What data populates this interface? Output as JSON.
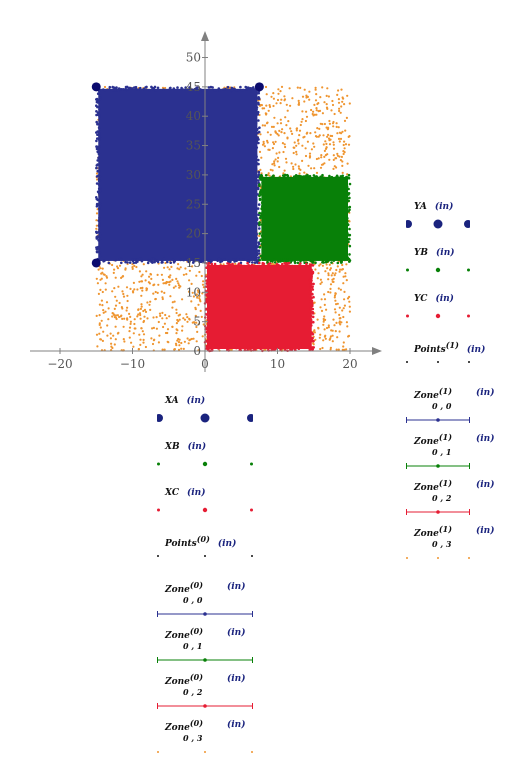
{
  "chart_data": {
    "type": "scatter",
    "x_ticks": [
      "−20",
      "−10",
      "0",
      "10",
      "20"
    ],
    "y_ticks": [
      "0",
      "5",
      "10",
      "15",
      "20",
      "25",
      "30",
      "35",
      "40",
      "45",
      "50"
    ],
    "xlim": [
      -24,
      24
    ],
    "ylim": [
      -2,
      55
    ],
    "colors": {
      "A": "#2b3190",
      "B": "#088008",
      "C": "#e61c33",
      "Points": "#ef9530",
      "axis": "#808080"
    },
    "regions": [
      {
        "name": "A",
        "x": [
          -15,
          7.5
        ],
        "y": [
          15,
          45
        ]
      },
      {
        "name": "B",
        "x": [
          7.5,
          20
        ],
        "y": [
          15,
          30
        ]
      },
      {
        "name": "C",
        "x": [
          0,
          15
        ],
        "y": [
          0,
          15
        ]
      }
    ],
    "points_region": {
      "x": [
        -15,
        20
      ],
      "y": [
        0,
        45
      ]
    },
    "corner_markers_A": [
      [
        -15,
        45
      ],
      [
        7.5,
        45
      ],
      [
        -15,
        15
      ]
    ]
  },
  "legend_y": [
    {
      "id": "ya",
      "label": "YA",
      "unit": "(in)",
      "color": "#1a237e",
      "style": "bigdot"
    },
    {
      "id": "yb",
      "label": "YB",
      "unit": "(in)",
      "color": "#088008",
      "style": "dot"
    },
    {
      "id": "yc",
      "label": "YC",
      "unit": "(in)",
      "color": "#e61c33",
      "style": "dot"
    },
    {
      "id": "points1",
      "label": "Points",
      "sup": "(1)",
      "unit": "(in)",
      "color": "#111111",
      "style": "tiny"
    },
    {
      "id": "zone00-1",
      "label": "Zone",
      "sub": "0 , 0",
      "sup": "(1)",
      "unit": "(in)",
      "color": "#2b3190",
      "style": "line"
    },
    {
      "id": "zone01-1",
      "label": "Zone",
      "sub": "0 , 1",
      "sup": "(1)",
      "unit": "(in)",
      "color": "#088008",
      "style": "line"
    },
    {
      "id": "zone02-1",
      "label": "Zone",
      "sub": "0 , 2",
      "sup": "(1)",
      "unit": "(in)",
      "color": "#e61c33",
      "style": "line"
    },
    {
      "id": "zone03-1",
      "label": "Zone",
      "sub": "0 , 3",
      "sup": "(1)",
      "unit": "(in)",
      "color": "#ef9530",
      "style": "dash"
    }
  ],
  "legend_x": [
    {
      "id": "xa",
      "label": "XA",
      "unit": "(in)",
      "color": "#1a237e",
      "style": "bigdot"
    },
    {
      "id": "xb",
      "label": "XB",
      "unit": "(in)",
      "color": "#088008",
      "style": "dot"
    },
    {
      "id": "xc",
      "label": "XC",
      "unit": "(in)",
      "color": "#e61c33",
      "style": "dot"
    },
    {
      "id": "points0",
      "label": "Points",
      "sup": "(0)",
      "unit": "(in)",
      "color": "#111111",
      "style": "tiny"
    },
    {
      "id": "zone00-0",
      "label": "Zone",
      "sub": "0 , 0",
      "sup": "(0)",
      "unit": "(in)",
      "color": "#2b3190",
      "style": "line"
    },
    {
      "id": "zone01-0",
      "label": "Zone",
      "sub": "0 , 1",
      "sup": "(0)",
      "unit": "(in)",
      "color": "#088008",
      "style": "line"
    },
    {
      "id": "zone02-0",
      "label": "Zone",
      "sub": "0 , 2",
      "sup": "(0)",
      "unit": "(in)",
      "color": "#e61c33",
      "style": "line"
    },
    {
      "id": "zone03-0",
      "label": "Zone",
      "sub": "0 , 3",
      "sup": "(0)",
      "unit": "(in)",
      "color": "#ef9530",
      "style": "dash"
    }
  ]
}
